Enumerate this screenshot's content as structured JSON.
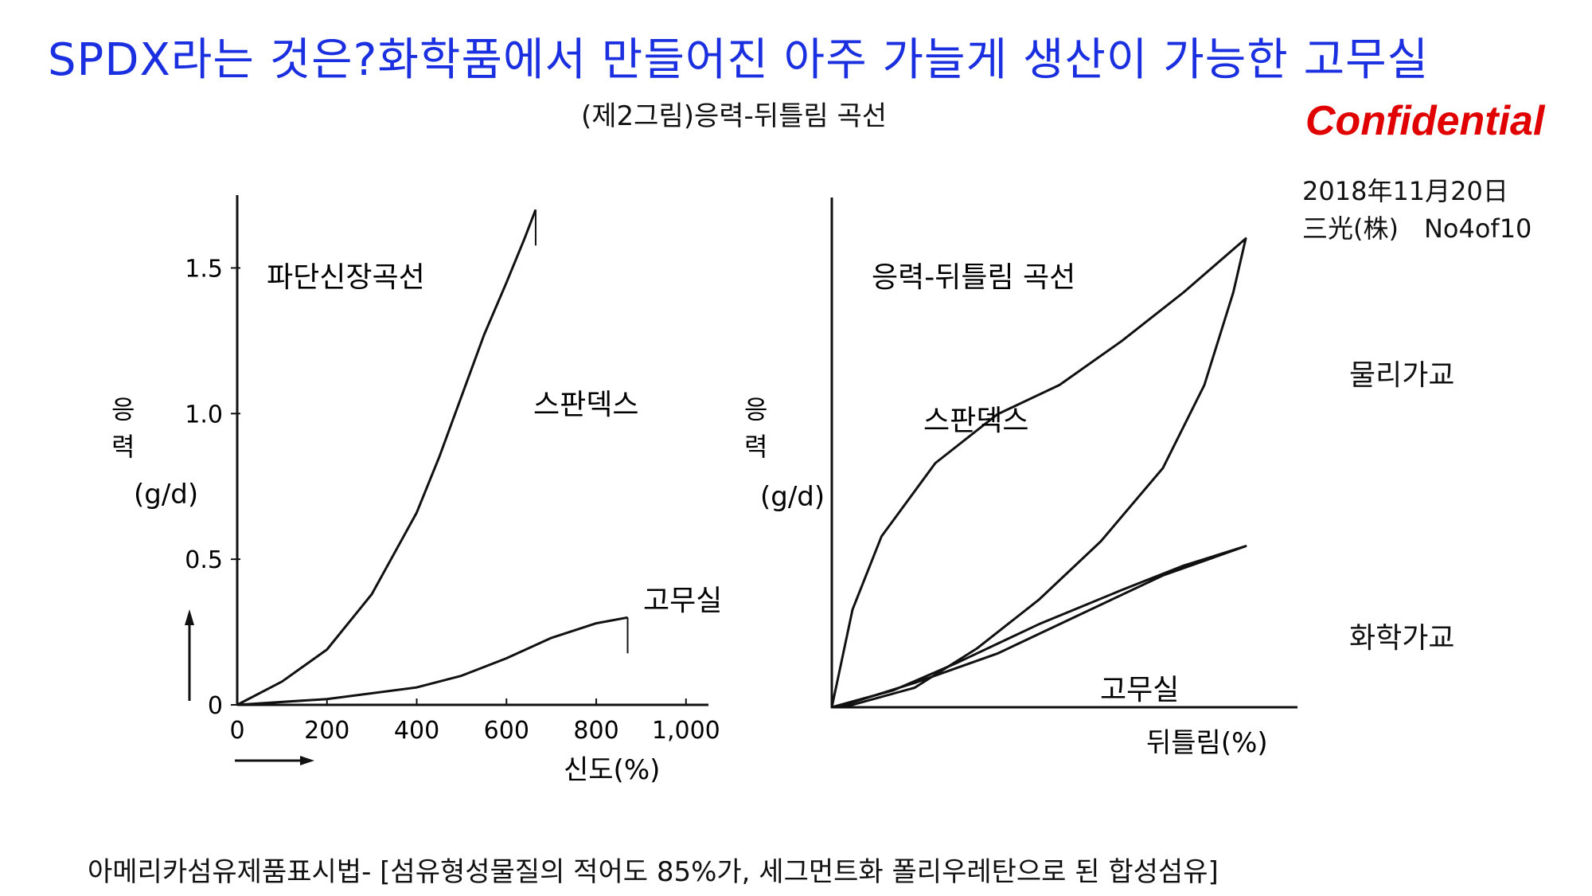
{
  "header": {
    "title": "SPDX라는 것은?화학품에서 만들어진 아주 가늘게 생산이 가능한 고무실",
    "subtitle": "(제2그림)응력-뒤틀림 곡선",
    "confidential": "Confidential",
    "date": "2018年11月20日",
    "company_page": "三光(株)　No4of10"
  },
  "side_labels": {
    "physical": "물리가교",
    "chemical": "화학가교"
  },
  "footer": "아메리카섬유제품표시법- [섬유형성물질의 적어도 85%가, 세그먼트화 폴리우레탄으로 된 합성섬유]",
  "chart_data": [
    {
      "type": "line",
      "title": "파단신장곡선",
      "xlabel": "신도(%)",
      "ylabel_1": "응",
      "ylabel_2": "력",
      "ylabel_unit": "(g/d)",
      "xlim": [
        0,
        1050
      ],
      "ylim": [
        0,
        1.75
      ],
      "xticks": [
        "0",
        "200",
        "400",
        "600",
        "800",
        "1,000"
      ],
      "xtick_values": [
        0,
        200,
        400,
        600,
        800,
        1000
      ],
      "yticks": [
        "0",
        "0.5",
        "1.0",
        "1.5"
      ],
      "ytick_values": [
        0,
        0.5,
        1.0,
        1.5
      ],
      "grid": false,
      "series": [
        {
          "name": "스판덱스",
          "x": [
            0,
            100,
            200,
            300,
            400,
            450,
            500,
            550,
            600,
            640,
            660,
            665
          ],
          "y": [
            0,
            0.08,
            0.19,
            0.38,
            0.66,
            0.85,
            1.06,
            1.27,
            1.45,
            1.6,
            1.68,
            1.7
          ]
        },
        {
          "name": "고무실",
          "x": [
            0,
            200,
            400,
            500,
            600,
            700,
            800,
            870
          ],
          "y": [
            0,
            0.02,
            0.06,
            0.1,
            0.16,
            0.23,
            0.28,
            0.3
          ]
        }
      ]
    },
    {
      "type": "line",
      "title": "응력-뒤틀림 곡선",
      "xlabel": "뒤틀림(%)",
      "ylabel_1": "응",
      "ylabel_2": "력",
      "ylabel_unit": "(g/d)",
      "xlim": [
        0,
        1
      ],
      "ylim": [
        0,
        1
      ],
      "grid": false,
      "series": [
        {
          "name": "스판덱스",
          "x": [
            0,
            0.05,
            0.12,
            0.25,
            0.4,
            0.55,
            0.7,
            0.85,
            1.0,
            0.97,
            0.9,
            0.8,
            0.65,
            0.5,
            0.35,
            0.2,
            0.05,
            0
          ],
          "y": [
            0,
            0.2,
            0.35,
            0.5,
            0.6,
            0.66,
            0.75,
            0.85,
            0.96,
            0.85,
            0.66,
            0.49,
            0.34,
            0.22,
            0.12,
            0.04,
            0.005,
            0
          ]
        },
        {
          "name": "고무실",
          "x": [
            0,
            0.15,
            0.3,
            0.5,
            0.7,
            0.85,
            1.0,
            0.8,
            0.6,
            0.4,
            0.2,
            0.05,
            0
          ],
          "y": [
            0,
            0.035,
            0.09,
            0.17,
            0.24,
            0.29,
            0.33,
            0.27,
            0.19,
            0.11,
            0.05,
            0.01,
            0
          ]
        }
      ]
    }
  ]
}
